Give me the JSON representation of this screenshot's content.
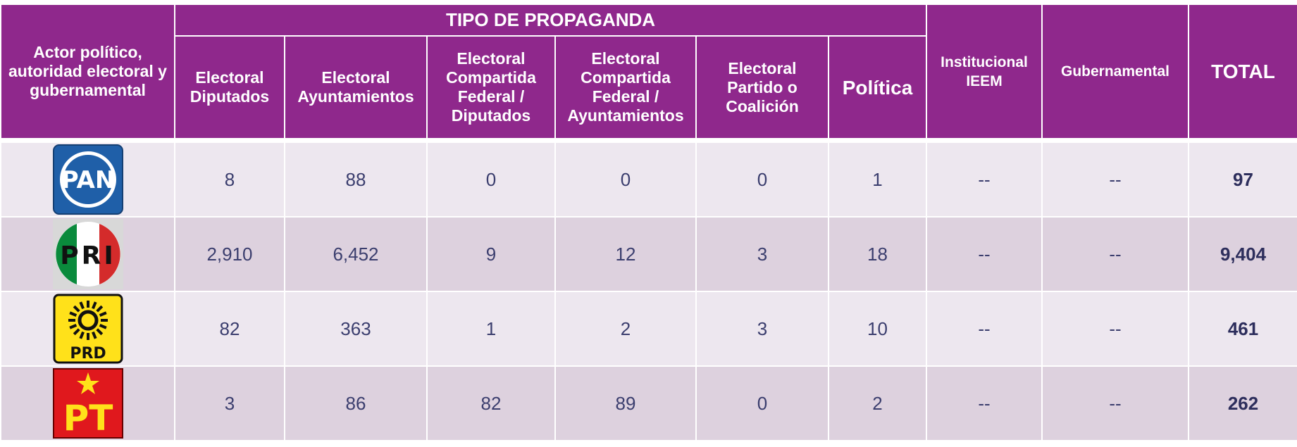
{
  "header": {
    "actor": "Actor político, autoridad electoral y gubernamental",
    "group": "TIPO DE PROPAGANDA",
    "subheaders": [
      "Electoral Diputados",
      "Electoral Ayuntamientos",
      "Electoral Compartida Federal / Diputados",
      "Electoral Compartida Federal / Ayuntamientos",
      "Electoral Partido o Coalición",
      "Política"
    ],
    "institucional": "Institucional IEEM",
    "gubernamental": "Gubernamental",
    "total": "TOTAL"
  },
  "rows": [
    {
      "logo": "PAN",
      "cells": [
        "8",
        "88",
        "0",
        "0",
        "0",
        "1",
        "--",
        "--"
      ],
      "total": "97"
    },
    {
      "logo": "PRI",
      "cells": [
        "2,910",
        "6,452",
        "9",
        "12",
        "3",
        "18",
        "--",
        "--"
      ],
      "total": "9,404"
    },
    {
      "logo": "PRD",
      "cells": [
        "82",
        "363",
        "1",
        "2",
        "3",
        "10",
        "--",
        "--"
      ],
      "total": "461"
    },
    {
      "logo": "PT",
      "cells": [
        "3",
        "86",
        "82",
        "89",
        "0",
        "2",
        "--",
        "--"
      ],
      "total": "262"
    }
  ]
}
